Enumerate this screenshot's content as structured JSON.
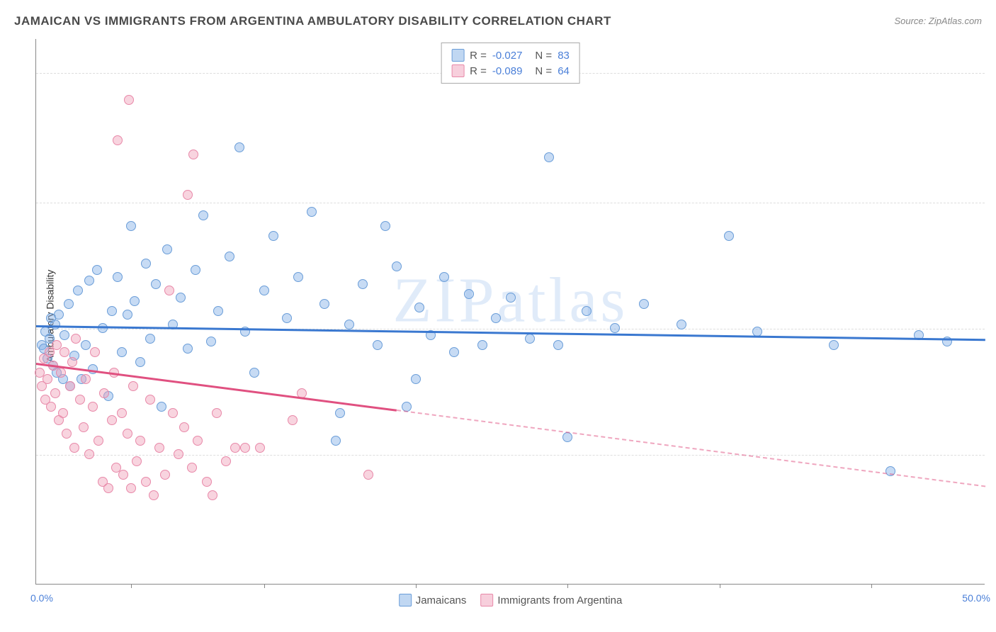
{
  "title": "JAMAICAN VS IMMIGRANTS FROM ARGENTINA AMBULATORY DISABILITY CORRELATION CHART",
  "source": "Source: ZipAtlas.com",
  "watermark": "ZIPatlas",
  "ylabel": "Ambulatory Disability",
  "chart": {
    "type": "scatter",
    "xlim": [
      0,
      50
    ],
    "ylim": [
      0,
      16
    ],
    "xlim_labels": {
      "min": "0.0%",
      "max": "50.0%"
    },
    "ytick_values": [
      3.8,
      7.5,
      11.2,
      15.0
    ],
    "ytick_labels": [
      "3.8%",
      "7.5%",
      "11.2%",
      "15.0%"
    ],
    "xtick_positions": [
      5,
      12,
      20,
      28,
      36,
      44
    ],
    "background_color": "#ffffff",
    "grid_color": "#dddddd",
    "axis_color": "#888888",
    "series": [
      {
        "name": "Jamaicans",
        "color_fill": "rgba(130,175,230,0.45)",
        "color_stroke": "#6a9dd8",
        "trend_color": "#3a78d0",
        "R": "-0.027",
        "N": "83",
        "trend": {
          "x1": 0,
          "y1": 7.6,
          "x2": 50,
          "y2": 7.2,
          "solid_until_x": 50
        },
        "points": [
          [
            0.3,
            7.0
          ],
          [
            0.4,
            6.9
          ],
          [
            0.5,
            7.4
          ],
          [
            0.6,
            6.6
          ],
          [
            0.7,
            7.2
          ],
          [
            0.8,
            7.8
          ],
          [
            0.9,
            6.4
          ],
          [
            1.0,
            7.6
          ],
          [
            1.1,
            6.2
          ],
          [
            1.2,
            7.9
          ],
          [
            1.4,
            6.0
          ],
          [
            1.5,
            7.3
          ],
          [
            1.7,
            8.2
          ],
          [
            1.8,
            5.8
          ],
          [
            2.0,
            6.7
          ],
          [
            2.2,
            8.6
          ],
          [
            2.4,
            6.0
          ],
          [
            2.6,
            7.0
          ],
          [
            2.8,
            8.9
          ],
          [
            3.0,
            6.3
          ],
          [
            3.2,
            9.2
          ],
          [
            3.5,
            7.5
          ],
          [
            3.8,
            5.5
          ],
          [
            4.0,
            8.0
          ],
          [
            4.3,
            9.0
          ],
          [
            4.5,
            6.8
          ],
          [
            4.8,
            7.9
          ],
          [
            5.0,
            10.5
          ],
          [
            5.2,
            8.3
          ],
          [
            5.5,
            6.5
          ],
          [
            5.8,
            9.4
          ],
          [
            6.0,
            7.2
          ],
          [
            6.3,
            8.8
          ],
          [
            6.6,
            5.2
          ],
          [
            6.9,
            9.8
          ],
          [
            7.2,
            7.6
          ],
          [
            7.6,
            8.4
          ],
          [
            8.0,
            6.9
          ],
          [
            8.4,
            9.2
          ],
          [
            8.8,
            10.8
          ],
          [
            9.2,
            7.1
          ],
          [
            9.6,
            8.0
          ],
          [
            10.2,
            9.6
          ],
          [
            10.7,
            12.8
          ],
          [
            11.0,
            7.4
          ],
          [
            11.5,
            6.2
          ],
          [
            12.0,
            8.6
          ],
          [
            12.5,
            10.2
          ],
          [
            13.2,
            7.8
          ],
          [
            13.8,
            9.0
          ],
          [
            14.5,
            10.9
          ],
          [
            15.2,
            8.2
          ],
          [
            15.8,
            4.2
          ],
          [
            16.0,
            5.0
          ],
          [
            16.5,
            7.6
          ],
          [
            17.2,
            8.8
          ],
          [
            18.0,
            7.0
          ],
          [
            18.4,
            10.5
          ],
          [
            19.0,
            9.3
          ],
          [
            19.5,
            5.2
          ],
          [
            20.0,
            6.0
          ],
          [
            20.2,
            8.1
          ],
          [
            20.8,
            7.3
          ],
          [
            21.5,
            9.0
          ],
          [
            22.0,
            6.8
          ],
          [
            22.8,
            8.5
          ],
          [
            23.5,
            7.0
          ],
          [
            24.2,
            7.8
          ],
          [
            25.0,
            8.4
          ],
          [
            26.0,
            7.2
          ],
          [
            27.0,
            12.5
          ],
          [
            27.5,
            7.0
          ],
          [
            28.0,
            4.3
          ],
          [
            29.0,
            8.0
          ],
          [
            30.5,
            7.5
          ],
          [
            32.0,
            8.2
          ],
          [
            34.0,
            7.6
          ],
          [
            36.5,
            10.2
          ],
          [
            38.0,
            7.4
          ],
          [
            42.0,
            7.0
          ],
          [
            45.0,
            3.3
          ],
          [
            46.5,
            7.3
          ],
          [
            48.0,
            7.1
          ]
        ]
      },
      {
        "name": "Immigrants from Argentina",
        "color_fill": "rgba(240,160,185,0.45)",
        "color_stroke": "#e888a8",
        "trend_color": "#e05080",
        "R": "-0.089",
        "N": "64",
        "trend": {
          "x1": 0,
          "y1": 6.5,
          "x2": 50,
          "y2": 2.9,
          "solid_until_x": 19
        },
        "points": [
          [
            0.2,
            6.2
          ],
          [
            0.3,
            5.8
          ],
          [
            0.4,
            6.6
          ],
          [
            0.5,
            5.4
          ],
          [
            0.6,
            6.0
          ],
          [
            0.7,
            6.8
          ],
          [
            0.8,
            5.2
          ],
          [
            0.9,
            6.4
          ],
          [
            1.0,
            5.6
          ],
          [
            1.1,
            7.0
          ],
          [
            1.2,
            4.8
          ],
          [
            1.3,
            6.2
          ],
          [
            1.4,
            5.0
          ],
          [
            1.5,
            6.8
          ],
          [
            1.6,
            4.4
          ],
          [
            1.8,
            5.8
          ],
          [
            1.9,
            6.5
          ],
          [
            2.0,
            4.0
          ],
          [
            2.1,
            7.2
          ],
          [
            2.3,
            5.4
          ],
          [
            2.5,
            4.6
          ],
          [
            2.6,
            6.0
          ],
          [
            2.8,
            3.8
          ],
          [
            3.0,
            5.2
          ],
          [
            3.1,
            6.8
          ],
          [
            3.3,
            4.2
          ],
          [
            3.5,
            3.0
          ],
          [
            3.6,
            5.6
          ],
          [
            3.8,
            2.8
          ],
          [
            4.0,
            4.8
          ],
          [
            4.1,
            6.2
          ],
          [
            4.2,
            3.4
          ],
          [
            4.5,
            5.0
          ],
          [
            4.6,
            3.2
          ],
          [
            4.8,
            4.4
          ],
          [
            5.0,
            2.8
          ],
          [
            5.1,
            5.8
          ],
          [
            5.3,
            3.6
          ],
          [
            5.5,
            4.2
          ],
          [
            5.8,
            3.0
          ],
          [
            6.0,
            5.4
          ],
          [
            6.2,
            2.6
          ],
          [
            6.5,
            4.0
          ],
          [
            6.8,
            3.2
          ],
          [
            7.0,
            8.6
          ],
          [
            7.2,
            5.0
          ],
          [
            7.5,
            3.8
          ],
          [
            7.8,
            4.6
          ],
          [
            8.0,
            11.4
          ],
          [
            8.2,
            3.4
          ],
          [
            8.3,
            12.6
          ],
          [
            8.5,
            4.2
          ],
          [
            9.0,
            3.0
          ],
          [
            9.3,
            2.6
          ],
          [
            9.5,
            5.0
          ],
          [
            10.0,
            3.6
          ],
          [
            10.5,
            4.0
          ],
          [
            11.0,
            4.0
          ],
          [
            11.8,
            4.0
          ],
          [
            13.5,
            4.8
          ],
          [
            14.0,
            5.6
          ],
          [
            17.5,
            3.2
          ],
          [
            4.9,
            14.2
          ],
          [
            4.3,
            13.0
          ]
        ]
      }
    ]
  },
  "legend_bottom": [
    {
      "label": "Jamaicans",
      "swatch": "blue"
    },
    {
      "label": "Immigrants from Argentina",
      "swatch": "pink"
    }
  ]
}
